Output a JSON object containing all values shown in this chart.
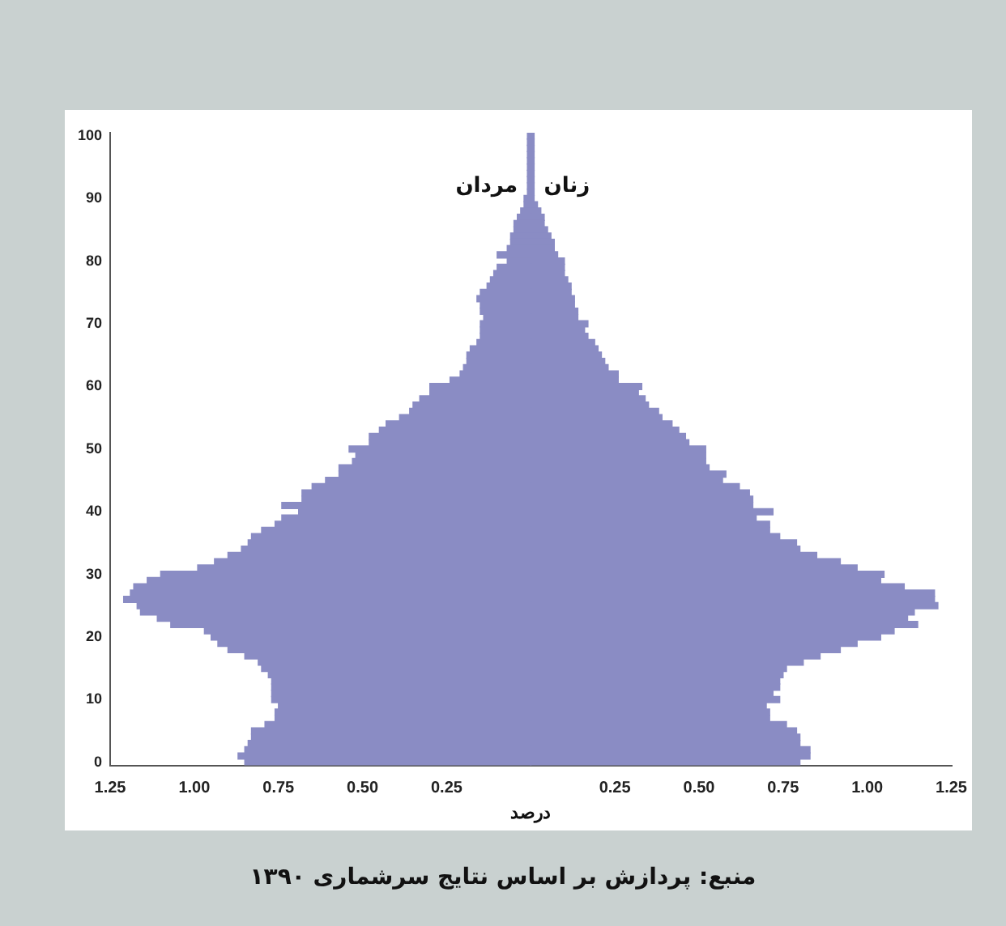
{
  "chart_data": {
    "type": "bar",
    "orientation": "horizontal",
    "stacked": true,
    "xlabel": "درصد",
    "annotations": [
      "منبع: پردازش بر اساس نتایج سرشماری ۱۳۹۰"
    ],
    "categories": [
      "100",
      null,
      null,
      null,
      null,
      null,
      null,
      null,
      null,
      null,
      "90",
      null,
      null,
      null,
      null,
      null,
      null,
      null,
      null,
      null,
      "80",
      null,
      null,
      null,
      null,
      null,
      null,
      null,
      null,
      null,
      "70",
      null,
      null,
      null,
      null,
      null,
      null,
      null,
      null,
      null,
      "60",
      null,
      null,
      null,
      null,
      null,
      null,
      null,
      null,
      null,
      "50",
      null,
      null,
      null,
      null,
      null,
      null,
      null,
      null,
      null,
      "40",
      null,
      null,
      null,
      null,
      null,
      null,
      null,
      null,
      null,
      "30",
      null,
      null,
      null,
      null,
      null,
      null,
      null,
      null,
      null,
      "20",
      null,
      null,
      null,
      null,
      null,
      null,
      null,
      null,
      null,
      "10",
      null,
      null,
      null,
      null,
      null,
      null,
      null,
      null,
      null,
      "0"
    ],
    "series": [
      {
        "name": "مردان",
        "color": "#8a8cc4",
        "values": [
          -0.01,
          -0.01,
          -0.01,
          -0.01,
          -0.01,
          -0.01,
          -0.01,
          -0.01,
          -0.01,
          -0.01,
          -0.02,
          -0.02,
          -0.03,
          -0.04,
          -0.05,
          -0.05,
          -0.06,
          -0.06,
          -0.07,
          -0.1,
          -0.07,
          -0.1,
          -0.11,
          -0.12,
          -0.13,
          -0.15,
          -0.16,
          -0.15,
          -0.15,
          -0.14,
          -0.15,
          -0.15,
          -0.15,
          -0.16,
          -0.18,
          -0.19,
          -0.19,
          -0.2,
          -0.21,
          -0.24,
          -0.3,
          -0.3,
          -0.33,
          -0.35,
          -0.36,
          -0.39,
          -0.43,
          -0.45,
          -0.48,
          -0.48,
          -0.54,
          -0.52,
          -0.53,
          -0.57,
          -0.57,
          -0.61,
          -0.65,
          -0.68,
          -0.68,
          -0.74,
          -0.69,
          -0.74,
          -0.76,
          -0.8,
          -0.83,
          -0.84,
          -0.86,
          -0.9,
          -0.94,
          -0.99,
          -1.1,
          -1.14,
          -1.18,
          -1.19,
          -1.21,
          -1.17,
          -1.16,
          -1.11,
          -1.07,
          -0.97,
          -0.95,
          -0.93,
          -0.9,
          -0.85,
          -0.81,
          -0.8,
          -0.78,
          -0.77,
          -0.77,
          -0.77,
          -0.77,
          -0.75,
          -0.76,
          -0.76,
          -0.79,
          -0.83,
          -0.83,
          -0.84,
          -0.85,
          -0.87,
          -0.85
        ]
      },
      {
        "name": "زنان",
        "color": "#8a8cc4",
        "values": [
          0.01,
          0.01,
          0.01,
          0.01,
          0.01,
          0.01,
          0.01,
          0.01,
          0.01,
          0.01,
          0.01,
          0.02,
          0.03,
          0.04,
          0.04,
          0.05,
          0.06,
          0.07,
          0.07,
          0.08,
          0.1,
          0.1,
          0.1,
          0.11,
          0.12,
          0.12,
          0.13,
          0.13,
          0.14,
          0.14,
          0.17,
          0.16,
          0.17,
          0.19,
          0.2,
          0.21,
          0.22,
          0.23,
          0.26,
          0.26,
          0.33,
          0.32,
          0.34,
          0.35,
          0.38,
          0.39,
          0.42,
          0.44,
          0.46,
          0.47,
          0.52,
          0.52,
          0.52,
          0.53,
          0.58,
          0.57,
          0.62,
          0.65,
          0.66,
          0.66,
          0.72,
          0.67,
          0.71,
          0.71,
          0.74,
          0.79,
          0.8,
          0.85,
          0.92,
          0.97,
          1.05,
          1.04,
          1.11,
          1.2,
          1.2,
          1.21,
          1.14,
          1.12,
          1.15,
          1.08,
          1.04,
          0.97,
          0.92,
          0.86,
          0.81,
          0.76,
          0.75,
          0.74,
          0.74,
          0.72,
          0.74,
          0.7,
          0.71,
          0.71,
          0.76,
          0.79,
          0.8,
          0.8,
          0.83,
          0.83,
          0.8
        ]
      }
    ],
    "xlim": [
      -1.25,
      1.25
    ],
    "xticks": [
      {
        "value": -1.25,
        "label": "1.25"
      },
      {
        "value": -1,
        "label": "1.00"
      },
      {
        "value": -0.75,
        "label": "0.75"
      },
      {
        "value": -0.5,
        "label": "0.50"
      },
      {
        "value": -0.25,
        "label": "0.25"
      },
      {
        "value": 0.25,
        "label": "0.25"
      },
      {
        "value": 0.5,
        "label": "0.50"
      },
      {
        "value": 0.75,
        "label": "0.75"
      },
      {
        "value": 1,
        "label": "1.00"
      },
      {
        "value": 1.25,
        "label": "1.25"
      }
    ],
    "grid": false,
    "legend": false
  }
}
